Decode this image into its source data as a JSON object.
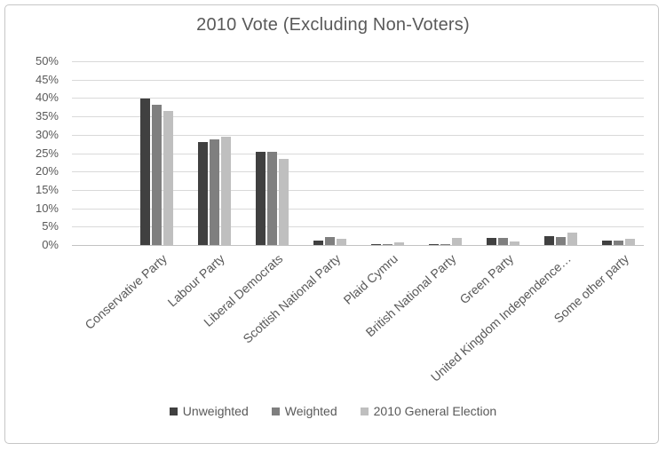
{
  "title": "2010 Vote (Excluding Non-Voters)",
  "colors": {
    "text": "#595959",
    "gridline": "#d9d9d9",
    "axis_line": "#c2c2c2",
    "frame_border": "#c6c6c6",
    "series_unweighted": "#404040",
    "series_weighted": "#7f7f7f",
    "series_election": "#bfbfbf"
  },
  "chart_data": {
    "type": "bar",
    "title": "2010 Vote (Excluding Non-Voters)",
    "categories": [
      "Conservative Party",
      "Labour Party",
      "Liberal Democrats",
      "Scottish National Party",
      "Plaid Cymru",
      "British National Party",
      "Green Party",
      "United Kingdom Independence…",
      "Some other party"
    ],
    "series": [
      {
        "name": "Unweighted",
        "color": "#404040",
        "values": [
          39.8,
          28.0,
          25.3,
          1.2,
          0.2,
          0.1,
          2.0,
          2.4,
          1.3
        ]
      },
      {
        "name": "Weighted",
        "color": "#7f7f7f",
        "values": [
          38.1,
          28.7,
          25.3,
          2.2,
          0.2,
          0.1,
          2.0,
          2.1,
          1.1
        ]
      },
      {
        "name": "2010 General Election",
        "color": "#bfbfbf",
        "values": [
          36.5,
          29.5,
          23.5,
          1.7,
          0.7,
          1.9,
          0.9,
          3.3,
          1.7
        ]
      }
    ],
    "ylabel": "",
    "xlabel": "",
    "ylim": [
      0,
      50
    ],
    "y_tick_step": 5,
    "y_ticks": [
      "0%",
      "5%",
      "10%",
      "15%",
      "20%",
      "25%",
      "30%",
      "35%",
      "40%",
      "45%",
      "50%"
    ],
    "grid": true,
    "legend_position": "bottom"
  }
}
